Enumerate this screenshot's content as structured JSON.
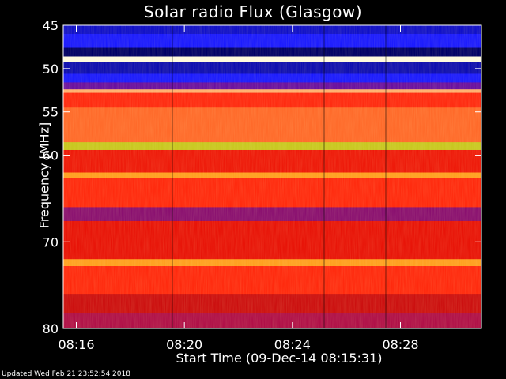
{
  "chart_data": {
    "type": "heatmap",
    "title": "Solar radio Flux (Glasgow)",
    "ylabel": "Frequency [MHz]",
    "xlabel": "Start Time (09-Dec-14 08:15:31)",
    "x_ticks": [
      "08:16",
      "08:20",
      "08:24",
      "08:28"
    ],
    "y_ticks": [
      45,
      50,
      55,
      60,
      70,
      80
    ],
    "ylim": [
      45,
      80
    ],
    "xlim": [
      "08:15:31",
      "08:31:00"
    ],
    "frequency_bands": [
      {
        "from": 45.0,
        "to": 46.0,
        "color": "#1010c8"
      },
      {
        "from": 46.0,
        "to": 47.6,
        "color": "#1a1aff"
      },
      {
        "from": 47.6,
        "to": 48.6,
        "color": "#000066"
      },
      {
        "from": 48.6,
        "to": 49.2,
        "color": "#fffbe0"
      },
      {
        "from": 49.2,
        "to": 50.6,
        "color": "#0e0eb0"
      },
      {
        "from": 50.6,
        "to": 51.6,
        "color": "#1a1aff"
      },
      {
        "from": 51.6,
        "to": 52.4,
        "color": "#6a10a0"
      },
      {
        "from": 52.4,
        "to": 52.8,
        "color": "#ffb070"
      },
      {
        "from": 52.8,
        "to": 54.5,
        "color": "#ff2a10"
      },
      {
        "from": 54.5,
        "to": 58.5,
        "color": "#ff6a2a"
      },
      {
        "from": 58.5,
        "to": 59.4,
        "color": "#c8c820"
      },
      {
        "from": 59.4,
        "to": 62.0,
        "color": "#ee1a0a"
      },
      {
        "from": 62.0,
        "to": 62.6,
        "color": "#ffa020"
      },
      {
        "from": 62.6,
        "to": 66.0,
        "color": "#ff2a0e"
      },
      {
        "from": 66.0,
        "to": 67.6,
        "color": "#8a1070"
      },
      {
        "from": 67.6,
        "to": 72.0,
        "color": "#e81408"
      },
      {
        "from": 72.0,
        "to": 72.8,
        "color": "#ffa020"
      },
      {
        "from": 72.8,
        "to": 76.0,
        "color": "#ff2a0e"
      },
      {
        "from": 76.0,
        "to": 78.2,
        "color": "#cc1010"
      },
      {
        "from": 78.2,
        "to": 80.0,
        "color": "#b01048"
      }
    ],
    "colors": {
      "background": "#000000",
      "text": "#ffffff"
    }
  },
  "footer": {
    "updated": "Updated Wed Feb 21 23:52:54 2018"
  }
}
